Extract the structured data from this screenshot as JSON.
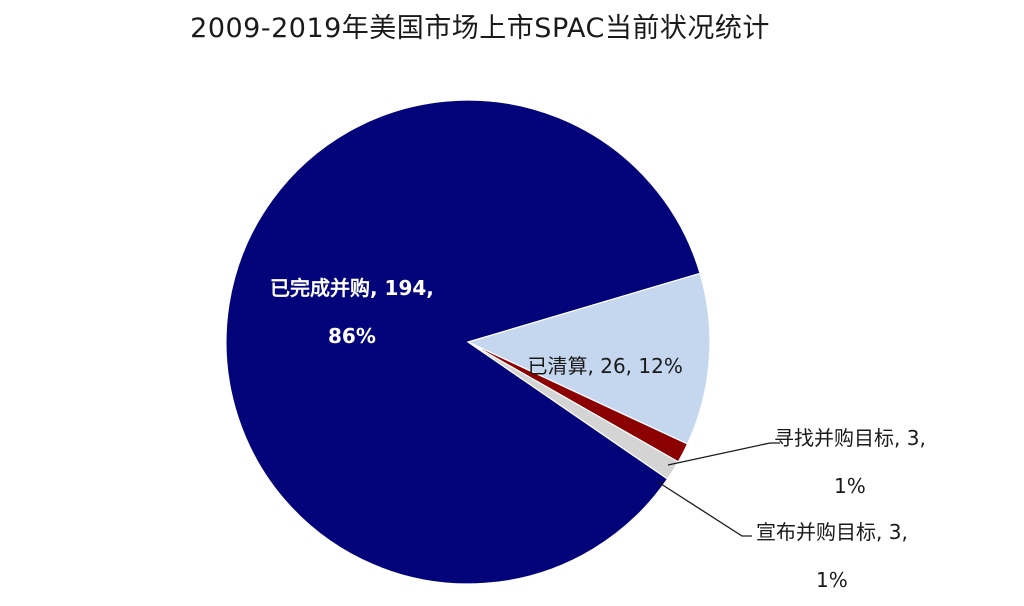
{
  "chart_data": {
    "type": "pie",
    "title": "2009-2019年美国市场上市SPAC当前状况统计",
    "slices": [
      {
        "name": "已清算",
        "value": 26,
        "percent": "12%",
        "color": "#c5d7ef",
        "label_lines": [
          "已清算, 26, 12%"
        ],
        "label_text_color": "#1a1a1a"
      },
      {
        "name": "寻找并购目标",
        "value": 3,
        "percent": "1%",
        "color": "#8b0000",
        "label_lines": [
          "寻找并购目标, 3,",
          "1%"
        ],
        "label_text_color": "#1a1a1a"
      },
      {
        "name": "宣布并购目标",
        "value": 3,
        "percent": "1%",
        "color": "#d4d4d4",
        "label_lines": [
          "宣布并购目标, 3,",
          "1%"
        ],
        "label_text_color": "#1a1a1a"
      },
      {
        "name": "已完成并购",
        "value": 194,
        "percent": "86%",
        "color": "#03037a",
        "label_lines": [
          "已完成并购, 194,",
          "86%"
        ],
        "label_text_color": "#ffffff"
      }
    ],
    "leader_line_color": "#1a1a1a"
  }
}
